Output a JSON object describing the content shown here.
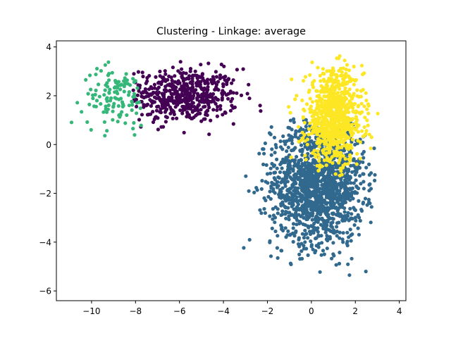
{
  "chart_data": {
    "type": "scatter",
    "title": "Clustering - Linkage: average",
    "xlabel": "",
    "ylabel": "",
    "xlim": [
      -11.6,
      4.3
    ],
    "ylim": [
      -6.4,
      4.25
    ],
    "xticks": [
      -10,
      -8,
      -6,
      -4,
      -2,
      0,
      2,
      4
    ],
    "yticks": [
      -6,
      -4,
      -2,
      0,
      2,
      4
    ],
    "xtick_labels": [
      "−10",
      "−8",
      "−6",
      "−4",
      "−2",
      "0",
      "2",
      "4"
    ],
    "ytick_labels": [
      "−6",
      "−4",
      "−2",
      "0",
      "2",
      "4"
    ],
    "grid": false,
    "legend": "none",
    "clusters": [
      {
        "color": "#440154",
        "center": [
          -5.8,
          2.0
        ],
        "spread": [
          1.25,
          0.55
        ],
        "x_range": [
          -8.1,
          -1.4
        ],
        "y_range": [
          0.3,
          3.8
        ],
        "count": 520
      },
      {
        "color": "#31688e",
        "center": [
          0.3,
          -1.6
        ],
        "spread": [
          1.05,
          1.25
        ],
        "x_range": [
          -3.6,
          2.9
        ],
        "y_range": [
          -5.9,
          1.1
        ],
        "count": 1500
      },
      {
        "color": "#35b779",
        "center": [
          -8.9,
          1.95
        ],
        "spread": [
          0.75,
          0.6
        ],
        "x_range": [
          -11.2,
          -7.6
        ],
        "y_range": [
          0.3,
          3.7
        ],
        "count": 120
      },
      {
        "color": "#fde725",
        "center": [
          1.05,
          1.1
        ],
        "spread": [
          0.65,
          0.95
        ],
        "x_range": [
          -1.1,
          3.4
        ],
        "y_range": [
          -1.3,
          3.7
        ],
        "count": 850
      }
    ]
  }
}
